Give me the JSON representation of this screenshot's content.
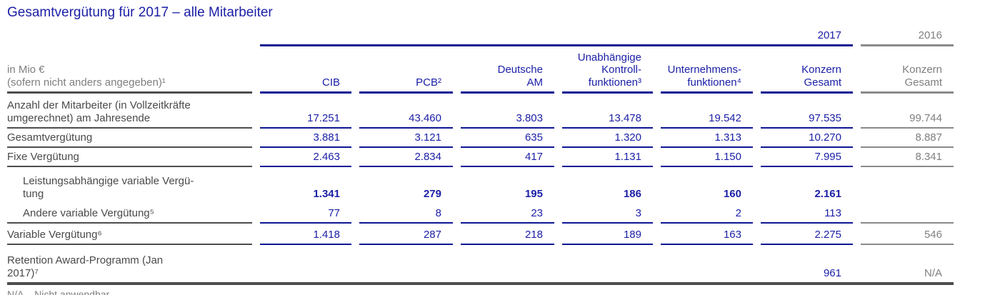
{
  "title": "Gesamtvergütung für 2017 – alle Mitarbeiter",
  "colors": {
    "brand_blue_text": "#1c20a6",
    "brand_blue_line": "#0e1694",
    "dark_gray": "#4a4a4a",
    "light_gray": "#7f7f7f"
  },
  "table": {
    "unit_note": "in Mio €\n(sofern nicht anders angegeben)¹",
    "year_current": "2017",
    "year_prior": "2016",
    "columns": {
      "c1": "CIB",
      "c2": "PCB²",
      "c3": "Deutsche\nAM",
      "c4": "Unabhängige\nKontroll-\nfunktionen³",
      "c5": "Unternehmens-\nfunktionen⁴",
      "c6": "Konzern\nGesamt",
      "prior": "Konzern\nGesamt"
    },
    "rows": [
      {
        "label": "Anzahl der Mitarbeiter (in Vollzeitkräfte\numgerechnet) am Jahresende",
        "values": [
          "17.251",
          "43.460",
          "3.803",
          "13.478",
          "19.542",
          "97.535"
        ],
        "prior": "99.744"
      },
      {
        "label": "Gesamtvergütung",
        "values": [
          "3.881",
          "3.121",
          "635",
          "1.320",
          "1.313",
          "10.270"
        ],
        "prior": "8.887"
      },
      {
        "label": "Fixe Vergütung",
        "values": [
          "2.463",
          "2.834",
          "417",
          "1.131",
          "1.150",
          "7.995"
        ],
        "prior": "8.341"
      },
      {
        "label": "Leistungsabhängige variable Vergü-\ntung",
        "values": [
          "1.341",
          "279",
          "195",
          "186",
          "160",
          "2.161"
        ],
        "prior": ""
      },
      {
        "label": "Andere variable Vergütung⁵",
        "values": [
          "77",
          "8",
          "23",
          "3",
          "2",
          "113"
        ],
        "prior": ""
      },
      {
        "label": "Variable Vergütung⁶",
        "values": [
          "1.418",
          "287",
          "218",
          "189",
          "163",
          "2.275"
        ],
        "prior": "546"
      },
      {
        "label": "Retention Award-Programm (Jan\n2017)⁷",
        "values": [
          "",
          "",
          "",
          "",
          "",
          "961"
        ],
        "prior": "N/A"
      }
    ],
    "footnote": "N/A – Nicht anwendbar"
  }
}
